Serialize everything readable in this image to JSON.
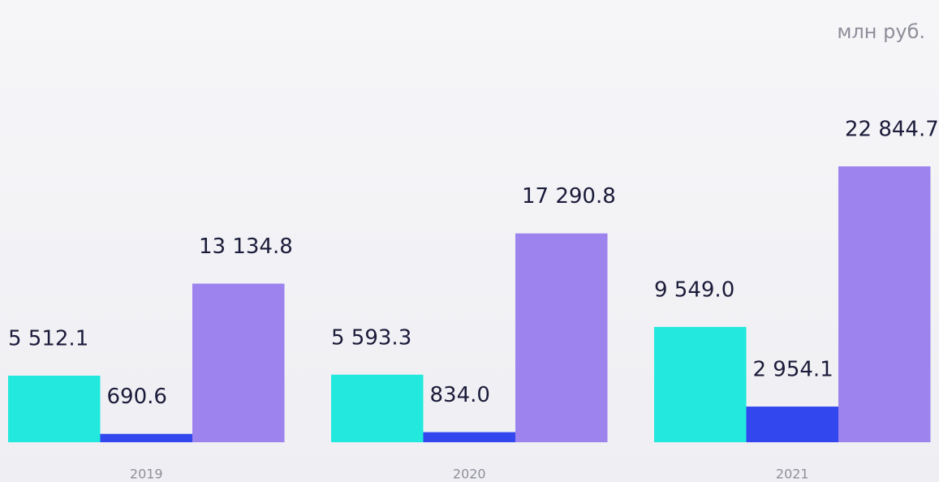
{
  "chart_data": {
    "type": "bar",
    "unit": "млн руб.",
    "categories": [
      "2019",
      "2020",
      "2021"
    ],
    "series": [
      {
        "color": "#22e8dd",
        "values": [
          5512.1,
          5593.3,
          9549.0
        ],
        "value_labels": [
          "5 512.1",
          "5 593.3",
          "9 549.0"
        ]
      },
      {
        "color": "#3347ee",
        "values": [
          690.6,
          834.0,
          2954.1
        ],
        "value_labels": [
          "690.6",
          "834.0",
          "2 954.1"
        ]
      },
      {
        "color": "#9d83ee",
        "values": [
          13134.8,
          17290.8,
          22844.7
        ],
        "value_labels": [
          "13 134.8",
          "17 290.8",
          "22 844.7"
        ]
      }
    ]
  }
}
